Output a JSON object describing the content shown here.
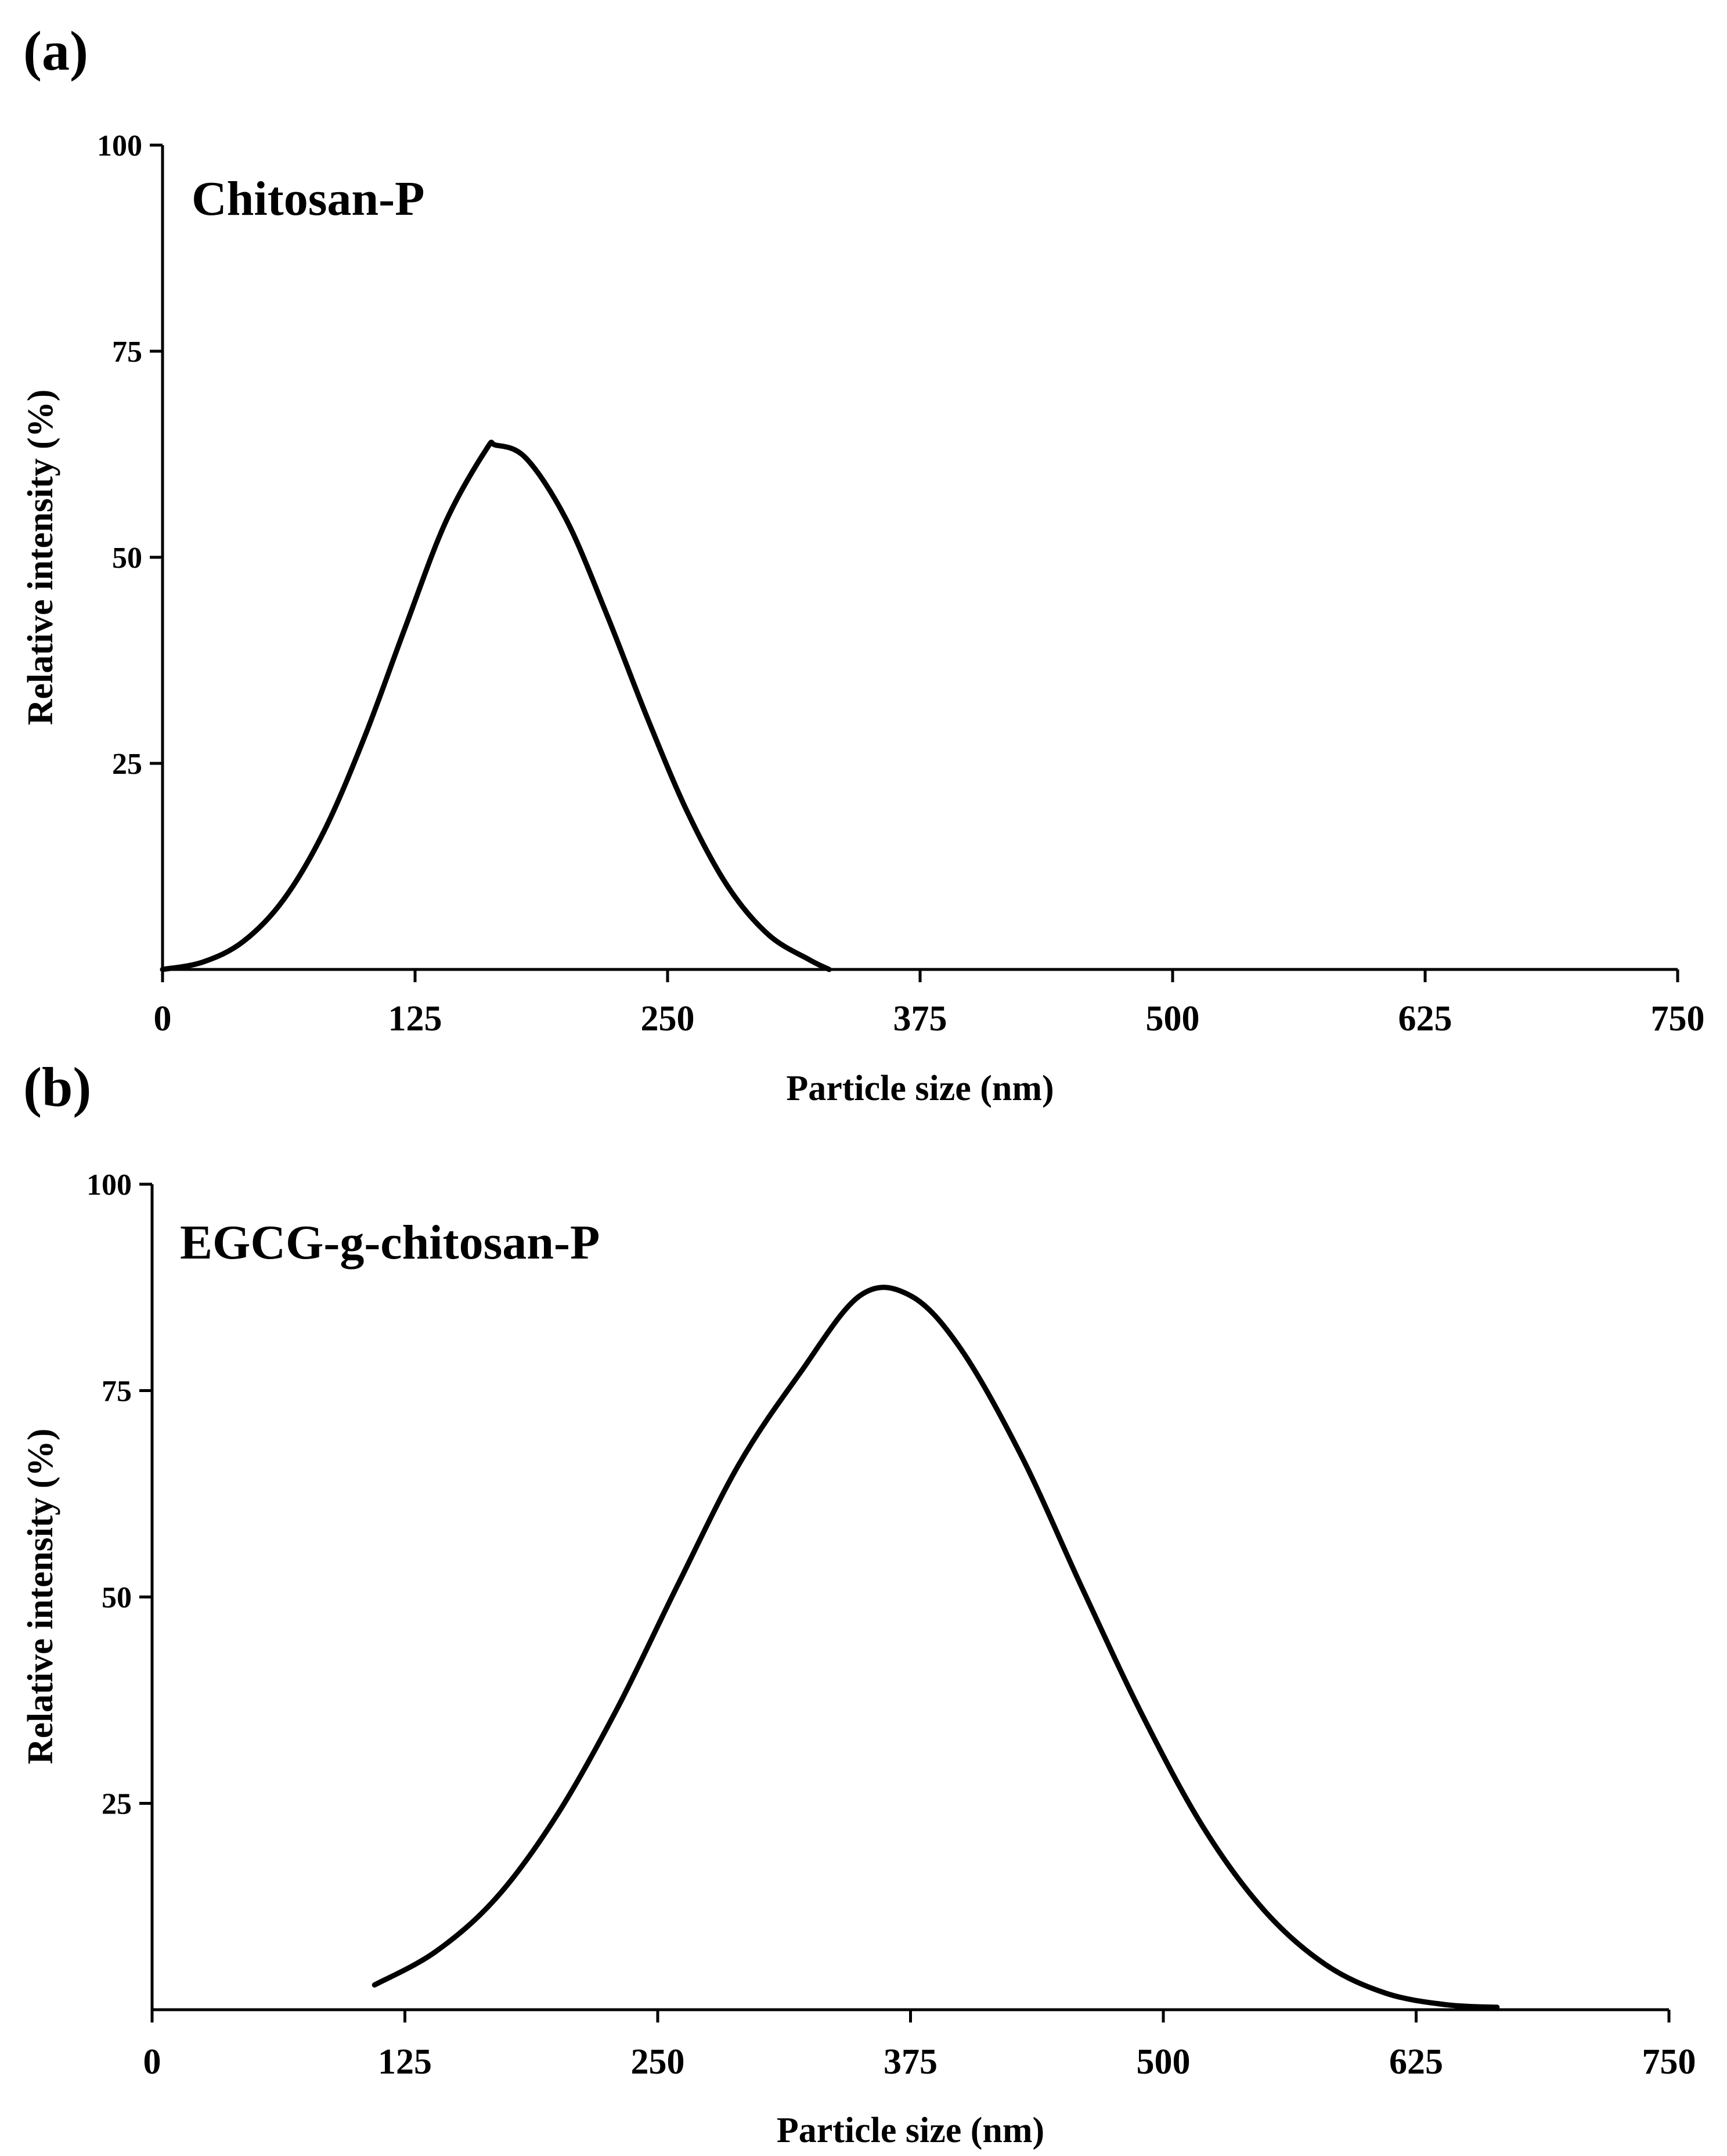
{
  "chart_data": [
    {
      "panel": "(a)",
      "type": "line",
      "series_label": "Chitosan-P",
      "xlabel": "Particle size (nm)",
      "ylabel": "Relative intensity (%)",
      "xlim": [
        0,
        750
      ],
      "ylim": [
        0,
        100
      ],
      "y_axis_min_drawn": 0,
      "xticks": [
        0,
        125,
        250,
        375,
        500,
        625,
        750
      ],
      "yticks": [
        25,
        50,
        75,
        100
      ],
      "series": [
        {
          "name": "Chitosan-P",
          "x": [
            0,
            20,
            40,
            60,
            80,
            100,
            120,
            140,
            160,
            165,
            180,
            200,
            220,
            240,
            260,
            280,
            300,
            320,
            330
          ],
          "y": [
            0,
            0.9,
            3.4,
            8.5,
            16.8,
            28.2,
            41.4,
            54.2,
            63.0,
            63.6,
            62.0,
            54.5,
            43.0,
            30.5,
            19.0,
            10.0,
            4.2,
            1.2,
            0
          ]
        }
      ]
    },
    {
      "panel": "(b)",
      "type": "line",
      "series_label": "EGCG-g-chitosan-P",
      "xlabel": "Particle size (nm)",
      "ylabel": "Relative intensity (%)",
      "xlim": [
        0,
        750
      ],
      "ylim": [
        0,
        100
      ],
      "xticks": [
        0,
        125,
        250,
        375,
        500,
        625,
        750
      ],
      "yticks": [
        25,
        50,
        75,
        100
      ],
      "series": [
        {
          "name": "EGCG-g-chitosan-P",
          "x": [
            110,
            140,
            170,
            200,
            230,
            260,
            290,
            320,
            350,
            375,
            400,
            430,
            460,
            490,
            520,
            550,
            580,
            610,
            640,
            665
          ],
          "y": [
            3.0,
            7.0,
            13.5,
            23.5,
            36.5,
            51.5,
            66.0,
            77.0,
            86.5,
            86.5,
            80.0,
            67.0,
            51.0,
            35.5,
            22.0,
            12.0,
            5.5,
            2.0,
            0.6,
            0.3
          ]
        }
      ]
    }
  ]
}
